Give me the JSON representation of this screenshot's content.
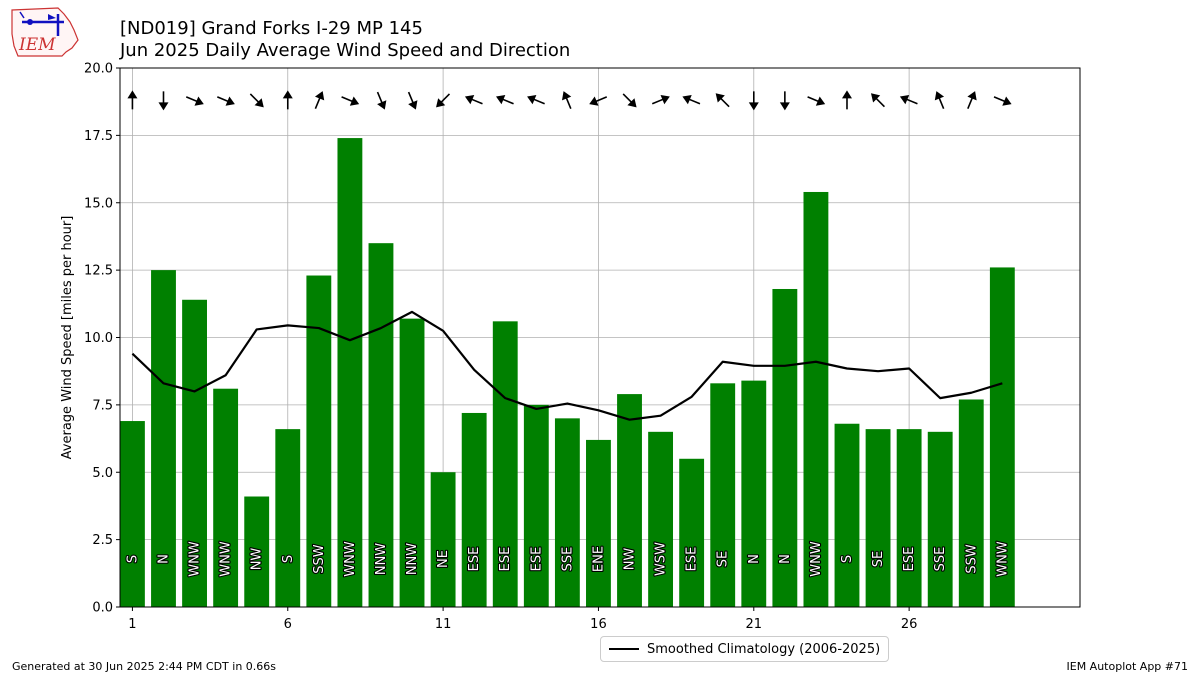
{
  "header": {
    "title_line1": "[ND019] Grand Forks I-29 MP 145",
    "title_line2": "Jun 2025 Daily Average Wind Speed and Direction",
    "logo_text": "IEM"
  },
  "footer": {
    "generated": "Generated at 30 Jun 2025 2:44 PM CDT in 0.66s",
    "app": "IEM Autoplot App #71"
  },
  "colors": {
    "bar": "#008000",
    "climatology_line": "#000000",
    "grid": "#b0b0b0",
    "arrow": "#000000",
    "logo_red": "#cc3333",
    "logo_blue": "#1010c0"
  },
  "chart_data": {
    "type": "bar",
    "title": "[ND019] Grand Forks I-29 MP 145",
    "subtitle": "Jun 2025 Daily Average Wind Speed and Direction",
    "xlabel": "",
    "ylabel": "Average Wind Speed [miles per hour]",
    "xlim": [
      0.6,
      31.5
    ],
    "ylim": [
      0,
      20
    ],
    "xticks": [
      1,
      6,
      11,
      16,
      21,
      26
    ],
    "xtick_labels": [
      "1",
      "6",
      "11",
      "16",
      "21",
      "26"
    ],
    "yticks": [
      0,
      2.5,
      5,
      7.5,
      10,
      12.5,
      15,
      17.5,
      20
    ],
    "ytick_labels": [
      "0.0",
      "2.5",
      "5.0",
      "7.5",
      "10.0",
      "12.5",
      "15.0",
      "17.5",
      "20.0"
    ],
    "grid": true,
    "legend_position": "bottom-center",
    "days": [
      1,
      2,
      3,
      4,
      5,
      6,
      7,
      8,
      9,
      10,
      11,
      12,
      13,
      14,
      15,
      16,
      17,
      18,
      19,
      20,
      21,
      22,
      23,
      24,
      25,
      26,
      27,
      28,
      29
    ],
    "series": [
      {
        "type": "bar",
        "values": [
          6.9,
          12.5,
          11.4,
          8.1,
          4.1,
          6.6,
          12.3,
          17.4,
          13.5,
          10.7,
          5.0,
          7.2,
          10.6,
          7.5,
          7.0,
          6.2,
          7.9,
          6.5,
          5.5,
          8.3,
          8.4,
          11.8,
          15.4,
          6.8,
          6.6,
          6.6,
          6.5,
          7.7,
          12.6
        ]
      },
      {
        "type": "line",
        "name": "Smoothed Climatology (2006-2025)",
        "values": [
          9.4,
          8.3,
          8.0,
          8.6,
          10.3,
          10.45,
          10.35,
          9.9,
          10.35,
          10.95,
          10.25,
          8.8,
          7.75,
          7.35,
          7.55,
          7.3,
          6.95,
          7.1,
          7.8,
          9.1,
          8.95,
          8.95,
          9.1,
          8.85,
          8.75,
          8.85,
          7.75,
          7.95,
          8.3
        ]
      }
    ],
    "direction_labels": [
      "S",
      "N",
      "WNW",
      "WNW",
      "NW",
      "S",
      "SSW",
      "WNW",
      "NNW",
      "NNW",
      "NE",
      "ESE",
      "ESE",
      "ESE",
      "SSE",
      "ENE",
      "NW",
      "WSW",
      "ESE",
      "SE",
      "N",
      "N",
      "WNW",
      "S",
      "SE",
      "ESE",
      "SSE",
      "SSW",
      "WNW"
    ],
    "direction_arrow_y": 18.8
  }
}
